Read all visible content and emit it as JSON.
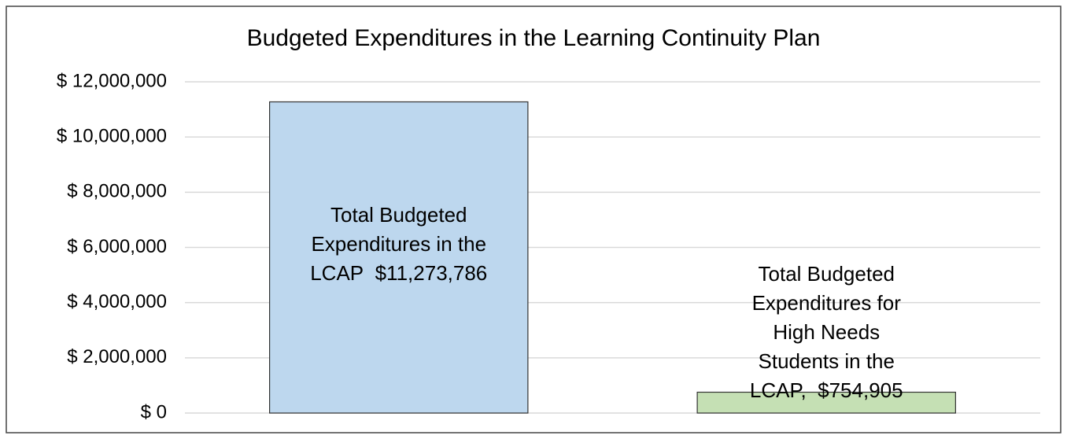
{
  "chart_data": {
    "type": "bar",
    "title": "Budgeted Expenditures in the Learning Continuity Plan",
    "categories": [
      "Total Budgeted Expenditures in the LCAP",
      "Total Budgeted Expenditures for High Needs Students in the LCAP,"
    ],
    "values": [
      11273786,
      754905
    ],
    "value_labels": [
      "$11,273,786",
      "$754,905"
    ],
    "colors": [
      "#bdd7ee",
      "#c5e0b4"
    ],
    "ylim": [
      0,
      12000000
    ],
    "yticks": [
      {
        "value": 0,
        "label": "$ 0"
      },
      {
        "value": 2000000,
        "label": "$ 2,000,000"
      },
      {
        "value": 4000000,
        "label": "$ 4,000,000"
      },
      {
        "value": 6000000,
        "label": "$ 6,000,000"
      },
      {
        "value": 8000000,
        "label": "$ 8,000,000"
      },
      {
        "value": 10000000,
        "label": "$ 10,000,000"
      },
      {
        "value": 12000000,
        "label": "$ 12,000,000"
      }
    ],
    "grid": true
  }
}
